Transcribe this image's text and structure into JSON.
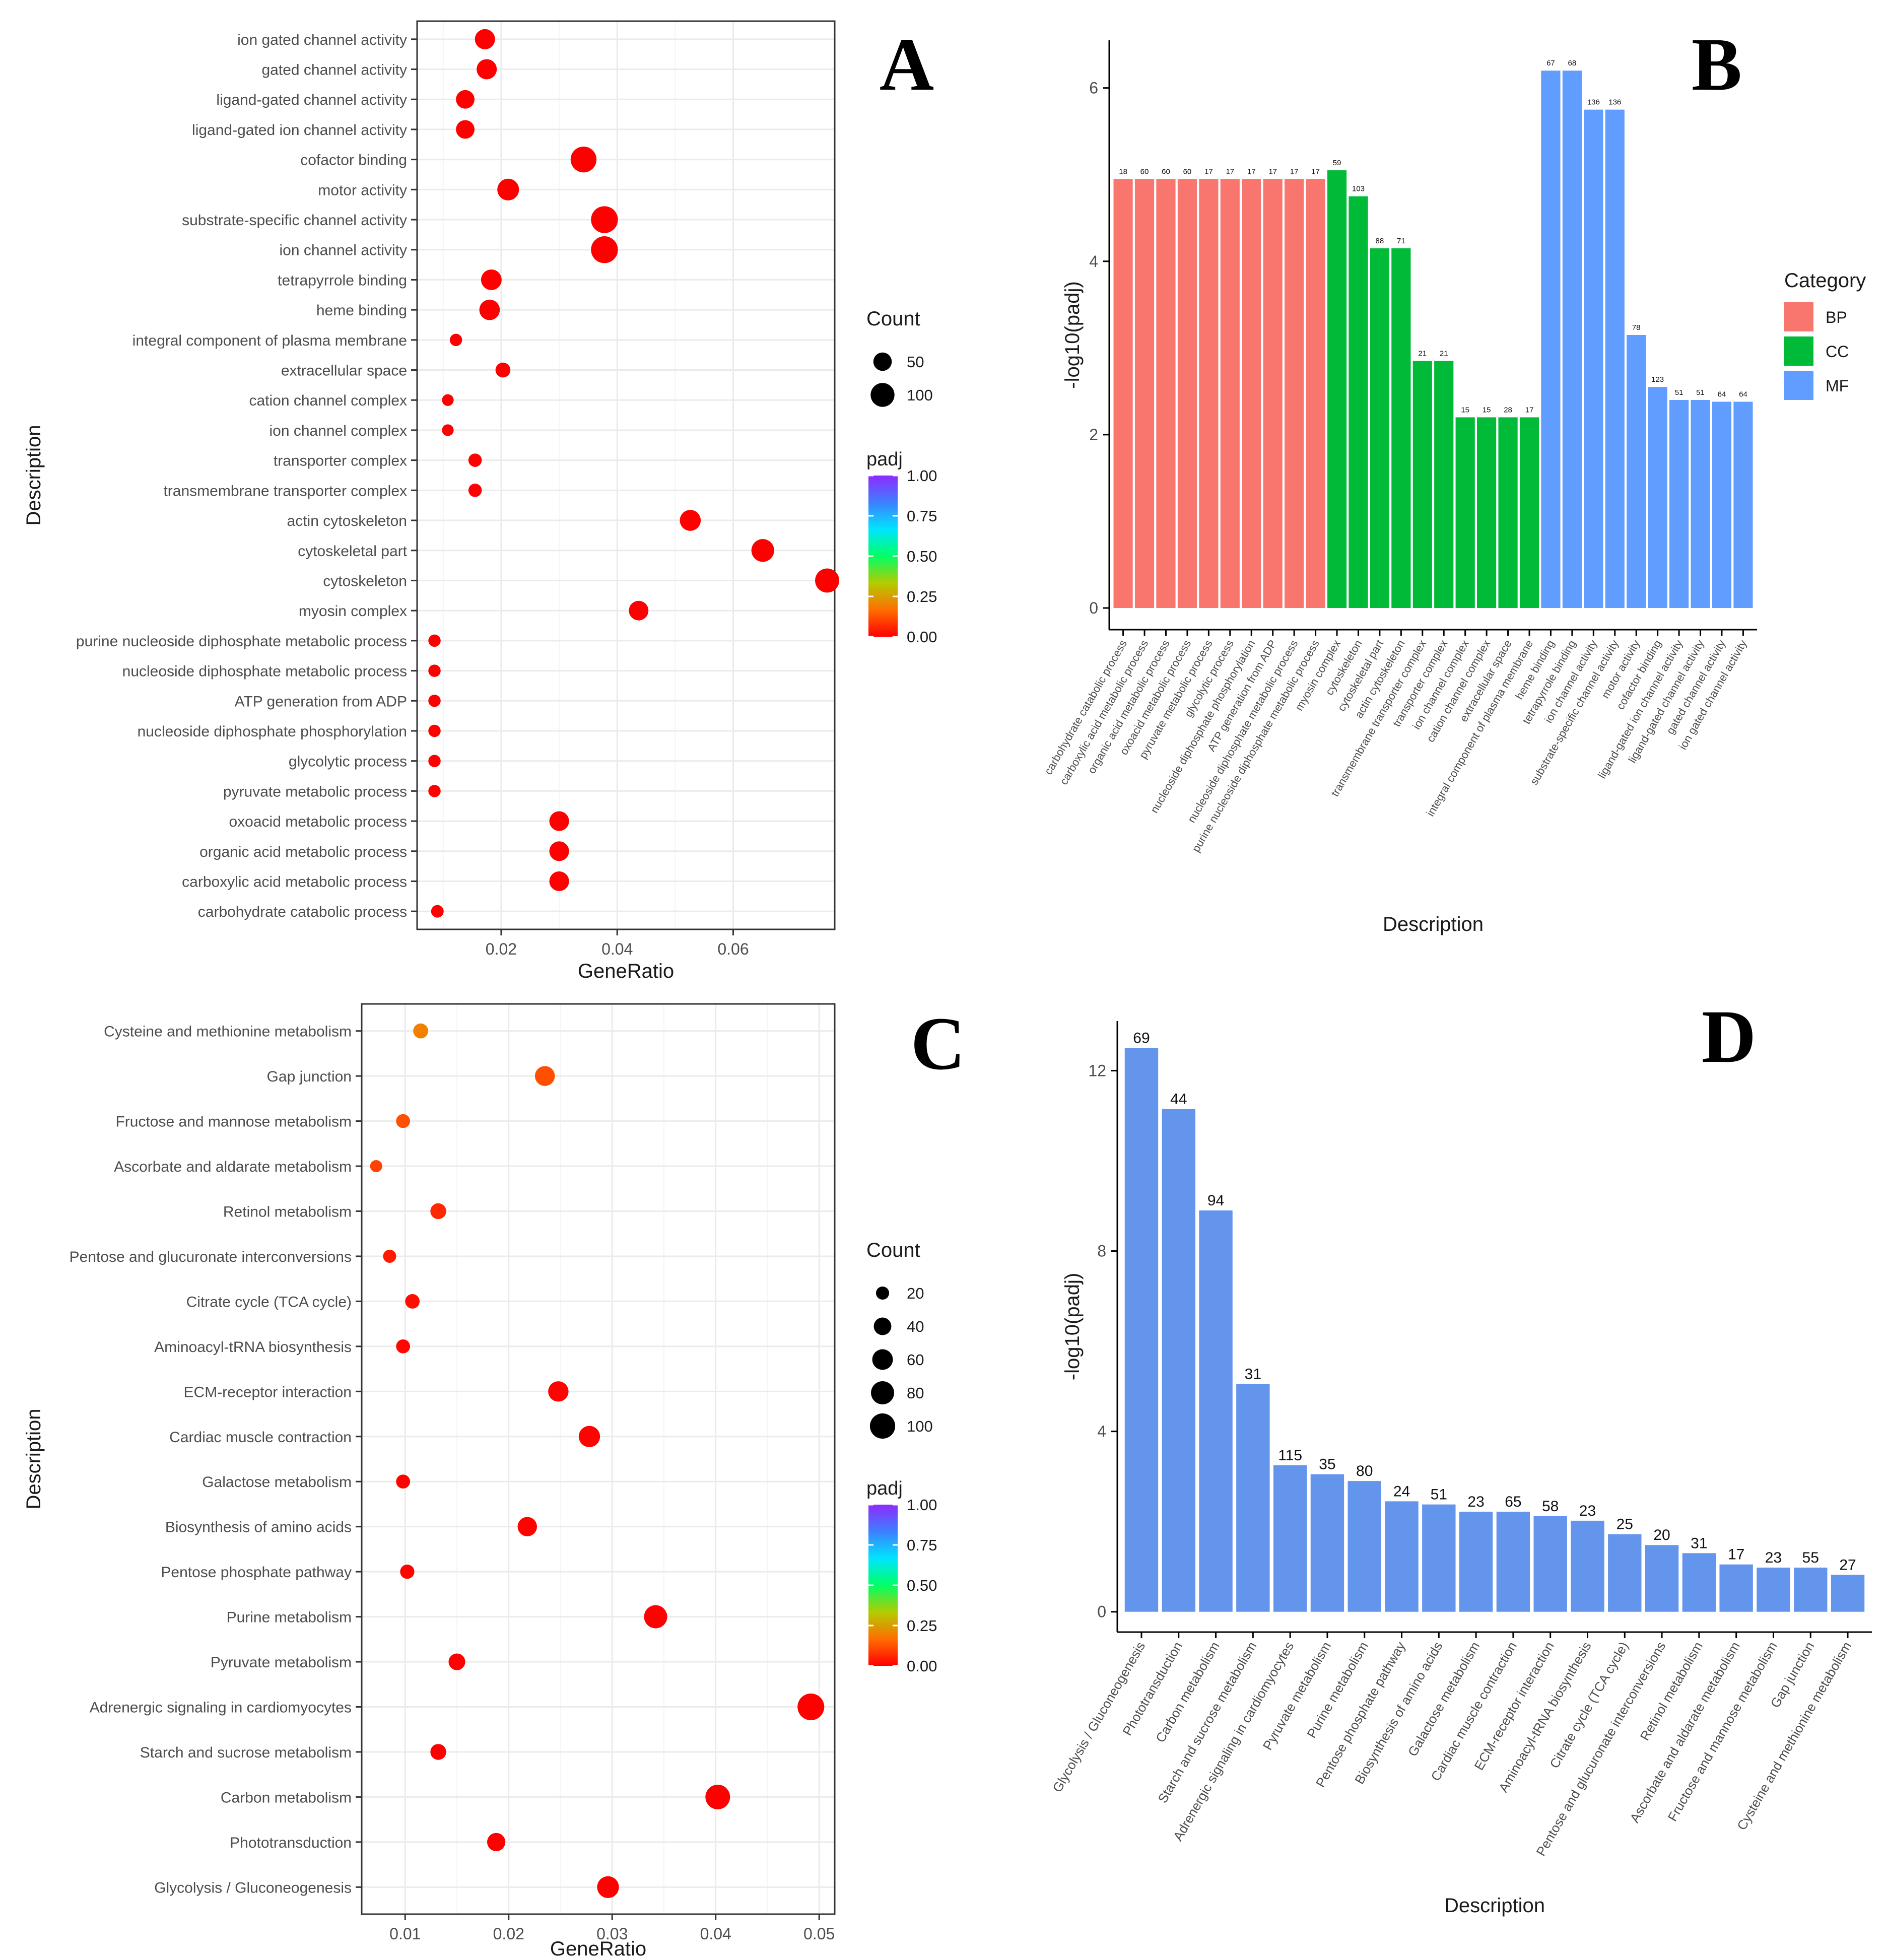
{
  "colors": {
    "BP": "#F8766D",
    "CC": "#00BA38",
    "MF": "#619CFF",
    "D_bar": "#6495ED",
    "grid": "#ebebeb",
    "panel_border": "#333333",
    "text": "#4d4d4d",
    "title": "#1a1a1a",
    "padj_gradient": [
      "#FF0000",
      "#FF6E00",
      "#B3CC00",
      "#00FF66",
      "#00E5FF",
      "#3D7FFF",
      "#8E2BFF"
    ]
  },
  "chart_data": [
    {
      "id": "A",
      "panel_label": "A",
      "type": "scatter",
      "title": "",
      "xlabel": "GeneRatio",
      "ylabel": "Description",
      "xlim": [
        0.0055,
        0.0775
      ],
      "x_ticks": [
        0.02,
        0.04,
        0.06
      ],
      "x_tick_labels": [
        "0.02",
        "0.04",
        "0.06"
      ],
      "size_legend": {
        "title": "Count",
        "values": [
          50,
          100
        ],
        "labels": [
          "50",
          "100"
        ]
      },
      "size_range": [
        8,
        140
      ],
      "color_legend": {
        "title": "padj",
        "ticks": [
          1.0,
          0.75,
          0.5,
          0.25,
          0.0
        ],
        "labels": [
          "1.00",
          "0.75",
          "0.50",
          "0.25",
          "0.00"
        ]
      },
      "points": [
        {
          "label": "ion gated channel activity",
          "x": 0.0172,
          "count": 64,
          "padj": 0.0
        },
        {
          "label": "gated channel activity",
          "x": 0.0175,
          "count": 64,
          "padj": 0.0
        },
        {
          "label": "ligand-gated channel activity",
          "x": 0.0138,
          "count": 51,
          "padj": 0.0
        },
        {
          "label": "ligand-gated ion channel activity",
          "x": 0.0138,
          "count": 51,
          "padj": 0.0
        },
        {
          "label": "cofactor binding",
          "x": 0.0342,
          "count": 123,
          "padj": 0.0
        },
        {
          "label": "motor activity",
          "x": 0.0212,
          "count": 78,
          "padj": 0.0
        },
        {
          "label": "substrate-specific channel activity",
          "x": 0.0378,
          "count": 136,
          "padj": 0.0
        },
        {
          "label": "ion channel activity",
          "x": 0.0378,
          "count": 136,
          "padj": 0.0
        },
        {
          "label": "tetrapyrrole binding",
          "x": 0.0183,
          "count": 68,
          "padj": 0.0
        },
        {
          "label": "heme binding",
          "x": 0.018,
          "count": 67,
          "padj": 0.0
        },
        {
          "label": "integral component of plasma membrane",
          "x": 0.0122,
          "count": 17,
          "padj": 0.0
        },
        {
          "label": "extracellular space",
          "x": 0.0203,
          "count": 28,
          "padj": 0.0
        },
        {
          "label": "cation channel complex",
          "x": 0.0108,
          "count": 15,
          "padj": 0.0
        },
        {
          "label": "ion channel complex",
          "x": 0.0108,
          "count": 15,
          "padj": 0.0
        },
        {
          "label": "transporter complex",
          "x": 0.0155,
          "count": 21,
          "padj": 0.0
        },
        {
          "label": "transmembrane transporter complex",
          "x": 0.0155,
          "count": 21,
          "padj": 0.0
        },
        {
          "label": "actin cytoskeleton",
          "x": 0.0526,
          "count": 71,
          "padj": 0.0
        },
        {
          "label": "cytoskeletal part",
          "x": 0.0651,
          "count": 88,
          "padj": 0.0
        },
        {
          "label": "cytoskeleton",
          "x": 0.0762,
          "count": 103,
          "padj": 0.0
        },
        {
          "label": "myosin complex",
          "x": 0.0437,
          "count": 59,
          "padj": 0.0
        },
        {
          "label": "purine nucleoside diphosphate metabolic process",
          "x": 0.0085,
          "count": 17,
          "padj": 0.0
        },
        {
          "label": "nucleoside diphosphate metabolic process",
          "x": 0.0085,
          "count": 17,
          "padj": 0.0
        },
        {
          "label": "ATP generation from ADP",
          "x": 0.0085,
          "count": 17,
          "padj": 0.0
        },
        {
          "label": "nucleoside diphosphate phosphorylation",
          "x": 0.0085,
          "count": 17,
          "padj": 0.0
        },
        {
          "label": "glycolytic process",
          "x": 0.0085,
          "count": 17,
          "padj": 0.0
        },
        {
          "label": "pyruvate metabolic process",
          "x": 0.0085,
          "count": 17,
          "padj": 0.0
        },
        {
          "label": "oxoacid metabolic process",
          "x": 0.03,
          "count": 60,
          "padj": 0.0
        },
        {
          "label": "organic acid metabolic process",
          "x": 0.03,
          "count": 60,
          "padj": 0.0
        },
        {
          "label": "carboxylic acid metabolic process",
          "x": 0.03,
          "count": 60,
          "padj": 0.0
        },
        {
          "label": "carbohydrate catabolic process",
          "x": 0.009,
          "count": 18,
          "padj": 0.0
        }
      ]
    },
    {
      "id": "B",
      "panel_label": "B",
      "type": "bar",
      "title": "",
      "xlabel": "Description",
      "ylabel": "-log10(padj)",
      "ylim": [
        -0.25,
        6.55
      ],
      "y_ticks": [
        0,
        2,
        4,
        6
      ],
      "legend": {
        "title": "Category",
        "items": [
          "BP",
          "CC",
          "MF"
        ]
      },
      "bars": [
        {
          "label": "carbohydrate catabolic process",
          "value": 4.95,
          "count": "18",
          "category": "BP"
        },
        {
          "label": "carboxylic acid metabolic process",
          "value": 4.95,
          "count": "60",
          "category": "BP"
        },
        {
          "label": "organic acid metabolic process",
          "value": 4.95,
          "count": "60",
          "category": "BP"
        },
        {
          "label": "oxoacid metabolic process",
          "value": 4.95,
          "count": "60",
          "category": "BP"
        },
        {
          "label": "pyruvate metabolic process",
          "value": 4.95,
          "count": "17",
          "category": "BP"
        },
        {
          "label": "glycolytic process",
          "value": 4.95,
          "count": "17",
          "category": "BP"
        },
        {
          "label": "nucleoside diphosphate phosphorylation",
          "value": 4.95,
          "count": "17",
          "category": "BP"
        },
        {
          "label": "ATP generation from ADP",
          "value": 4.95,
          "count": "17",
          "category": "BP"
        },
        {
          "label": "nucleoside diphosphate metabolic process",
          "value": 4.95,
          "count": "17",
          "category": "BP"
        },
        {
          "label": "purine nucleoside diphosphate metabolic process",
          "value": 4.95,
          "count": "17",
          "category": "BP"
        },
        {
          "label": "myosin complex",
          "value": 5.05,
          "count": "59",
          "category": "CC"
        },
        {
          "label": "cytoskeleton",
          "value": 4.75,
          "count": "103",
          "category": "CC"
        },
        {
          "label": "cytoskeletal part",
          "value": 4.15,
          "count": "88",
          "category": "CC"
        },
        {
          "label": "actin cytoskeleton",
          "value": 4.15,
          "count": "71",
          "category": "CC"
        },
        {
          "label": "transmembrane transporter complex",
          "value": 2.85,
          "count": "21",
          "category": "CC"
        },
        {
          "label": "transporter complex",
          "value": 2.85,
          "count": "21",
          "category": "CC"
        },
        {
          "label": "ion channel complex",
          "value": 2.2,
          "count": "15",
          "category": "CC"
        },
        {
          "label": "cation channel complex",
          "value": 2.2,
          "count": "15",
          "category": "CC"
        },
        {
          "label": "extracellular space",
          "value": 2.2,
          "count": "28",
          "category": "CC"
        },
        {
          "label": "integral component of plasma membrane",
          "value": 2.2,
          "count": "17",
          "category": "CC"
        },
        {
          "label": "heme binding",
          "value": 6.2,
          "count": "67",
          "category": "MF"
        },
        {
          "label": "tetrapyrrole binding",
          "value": 6.2,
          "count": "68",
          "category": "MF"
        },
        {
          "label": "ion channel activity",
          "value": 5.75,
          "count": "136",
          "category": "MF"
        },
        {
          "label": "substrate-specific channel activity",
          "value": 5.75,
          "count": "136",
          "category": "MF"
        },
        {
          "label": "motor activity",
          "value": 3.15,
          "count": "78",
          "category": "MF"
        },
        {
          "label": "cofactor binding",
          "value": 2.55,
          "count": "123",
          "category": "MF"
        },
        {
          "label": "ligand-gated ion channel activity",
          "value": 2.4,
          "count": "51",
          "category": "MF"
        },
        {
          "label": "ligand-gated channel activity",
          "value": 2.4,
          "count": "51",
          "category": "MF"
        },
        {
          "label": "gated channel activity",
          "value": 2.38,
          "count": "64",
          "category": "MF"
        },
        {
          "label": "ion gated channel activity",
          "value": 2.38,
          "count": "64",
          "category": "MF"
        }
      ]
    },
    {
      "id": "C",
      "panel_label": "C",
      "type": "scatter",
      "title": "",
      "xlabel": "GeneRatio",
      "ylabel": "Description",
      "xlim": [
        0.0058,
        0.0515
      ],
      "x_ticks": [
        0.01,
        0.02,
        0.03,
        0.04,
        0.05
      ],
      "x_tick_labels": [
        "0.01",
        "0.02",
        "0.03",
        "0.04",
        "0.05"
      ],
      "size_legend": {
        "title": "Count",
        "values": [
          20,
          40,
          60,
          80,
          100
        ],
        "labels": [
          "20",
          "40",
          "60",
          "80",
          "100"
        ]
      },
      "size_range": [
        10,
        120
      ],
      "color_legend": {
        "title": "padj",
        "ticks": [
          1.0,
          0.75,
          0.5,
          0.25,
          0.0
        ],
        "labels": [
          "1.00",
          "0.75",
          "0.50",
          "0.25",
          "0.00"
        ]
      },
      "points": [
        {
          "label": "Cysteine and methionine metabolism",
          "x": 0.0115,
          "count": 27,
          "padj": 0.2
        },
        {
          "label": "Gap junction",
          "x": 0.0235,
          "count": 55,
          "padj": 0.12
        },
        {
          "label": "Fructose and mannose metabolism",
          "x": 0.0098,
          "count": 23,
          "padj": 0.12
        },
        {
          "label": "Ascorbate and aldarate metabolism",
          "x": 0.0072,
          "count": 17,
          "padj": 0.1
        },
        {
          "label": "Retinol metabolism",
          "x": 0.0132,
          "count": 31,
          "padj": 0.06
        },
        {
          "label": "Pentose and glucuronate interconversions",
          "x": 0.0085,
          "count": 20,
          "padj": 0.04
        },
        {
          "label": "Citrate cycle (TCA cycle)",
          "x": 0.0107,
          "count": 25,
          "padj": 0.02
        },
        {
          "label": "Aminoacyl-tRNA biosynthesis",
          "x": 0.0098,
          "count": 23,
          "padj": 0.01
        },
        {
          "label": "ECM-receptor interaction",
          "x": 0.0248,
          "count": 58,
          "padj": 0.005
        },
        {
          "label": "Cardiac muscle contraction",
          "x": 0.0278,
          "count": 65,
          "padj": 0.005
        },
        {
          "label": "Galactose metabolism",
          "x": 0.0098,
          "count": 23,
          "padj": 0.005
        },
        {
          "label": "Biosynthesis of amino acids",
          "x": 0.0218,
          "count": 51,
          "padj": 0.004
        },
        {
          "label": "Pentose phosphate pathway",
          "x": 0.0102,
          "count": 24,
          "padj": 0.004
        },
        {
          "label": "Purine metabolism",
          "x": 0.0342,
          "count": 80,
          "padj": 0.001
        },
        {
          "label": "Pyruvate metabolism",
          "x": 0.015,
          "count": 35,
          "padj": 0.001
        },
        {
          "label": "Adrenergic signaling in cardiomyocytes",
          "x": 0.0492,
          "count": 115,
          "padj": 0.0
        },
        {
          "label": "Starch and sucrose metabolism",
          "x": 0.0132,
          "count": 31,
          "padj": 0.0
        },
        {
          "label": "Carbon metabolism",
          "x": 0.0402,
          "count": 94,
          "padj": 0.0
        },
        {
          "label": "Phototransduction",
          "x": 0.0188,
          "count": 44,
          "padj": 0.0
        },
        {
          "label": "Glycolysis / Gluconeogenesis",
          "x": 0.0296,
          "count": 69,
          "padj": 0.0
        }
      ]
    },
    {
      "id": "D",
      "panel_label": "D",
      "type": "bar",
      "title": "",
      "xlabel": "Description",
      "ylabel": "-log10(padj)",
      "ylim": [
        -0.45,
        13.1
      ],
      "y_ticks": [
        0,
        4,
        8,
        12
      ],
      "bars": [
        {
          "label": "Glycolysis / Gluconeogenesis",
          "value": 12.5,
          "count": "69"
        },
        {
          "label": "Phototransduction",
          "value": 11.15,
          "count": "44"
        },
        {
          "label": "Carbon metabolism",
          "value": 8.9,
          "count": "94"
        },
        {
          "label": "Starch and sucrose metabolism",
          "value": 5.05,
          "count": "31"
        },
        {
          "label": "Adrenergic signaling in cardiomyocytes",
          "value": 3.25,
          "count": "115"
        },
        {
          "label": "Pyruvate metabolism",
          "value": 3.05,
          "count": "35"
        },
        {
          "label": "Purine metabolism",
          "value": 2.9,
          "count": "80"
        },
        {
          "label": "Pentose phosphate pathway",
          "value": 2.45,
          "count": "24"
        },
        {
          "label": "Biosynthesis of amino acids",
          "value": 2.38,
          "count": "51"
        },
        {
          "label": "Galactose metabolism",
          "value": 2.22,
          "count": "23"
        },
        {
          "label": "Cardiac muscle contraction",
          "value": 2.22,
          "count": "65"
        },
        {
          "label": "ECM-receptor interaction",
          "value": 2.12,
          "count": "58"
        },
        {
          "label": "Aminoacyl-tRNA biosynthesis",
          "value": 2.02,
          "count": "23"
        },
        {
          "label": "Citrate cycle (TCA cycle)",
          "value": 1.72,
          "count": "25"
        },
        {
          "label": "Pentose and glucuronate interconversions",
          "value": 1.48,
          "count": "20"
        },
        {
          "label": "Retinol metabolism",
          "value": 1.3,
          "count": "31"
        },
        {
          "label": "Ascorbate and aldarate metabolism",
          "value": 1.05,
          "count": "17"
        },
        {
          "label": "Fructose and mannose metabolism",
          "value": 0.98,
          "count": "23"
        },
        {
          "label": "Gap junction",
          "value": 0.98,
          "count": "55"
        },
        {
          "label": "Cysteine and methionine metabolism",
          "value": 0.82,
          "count": "27"
        }
      ]
    }
  ]
}
